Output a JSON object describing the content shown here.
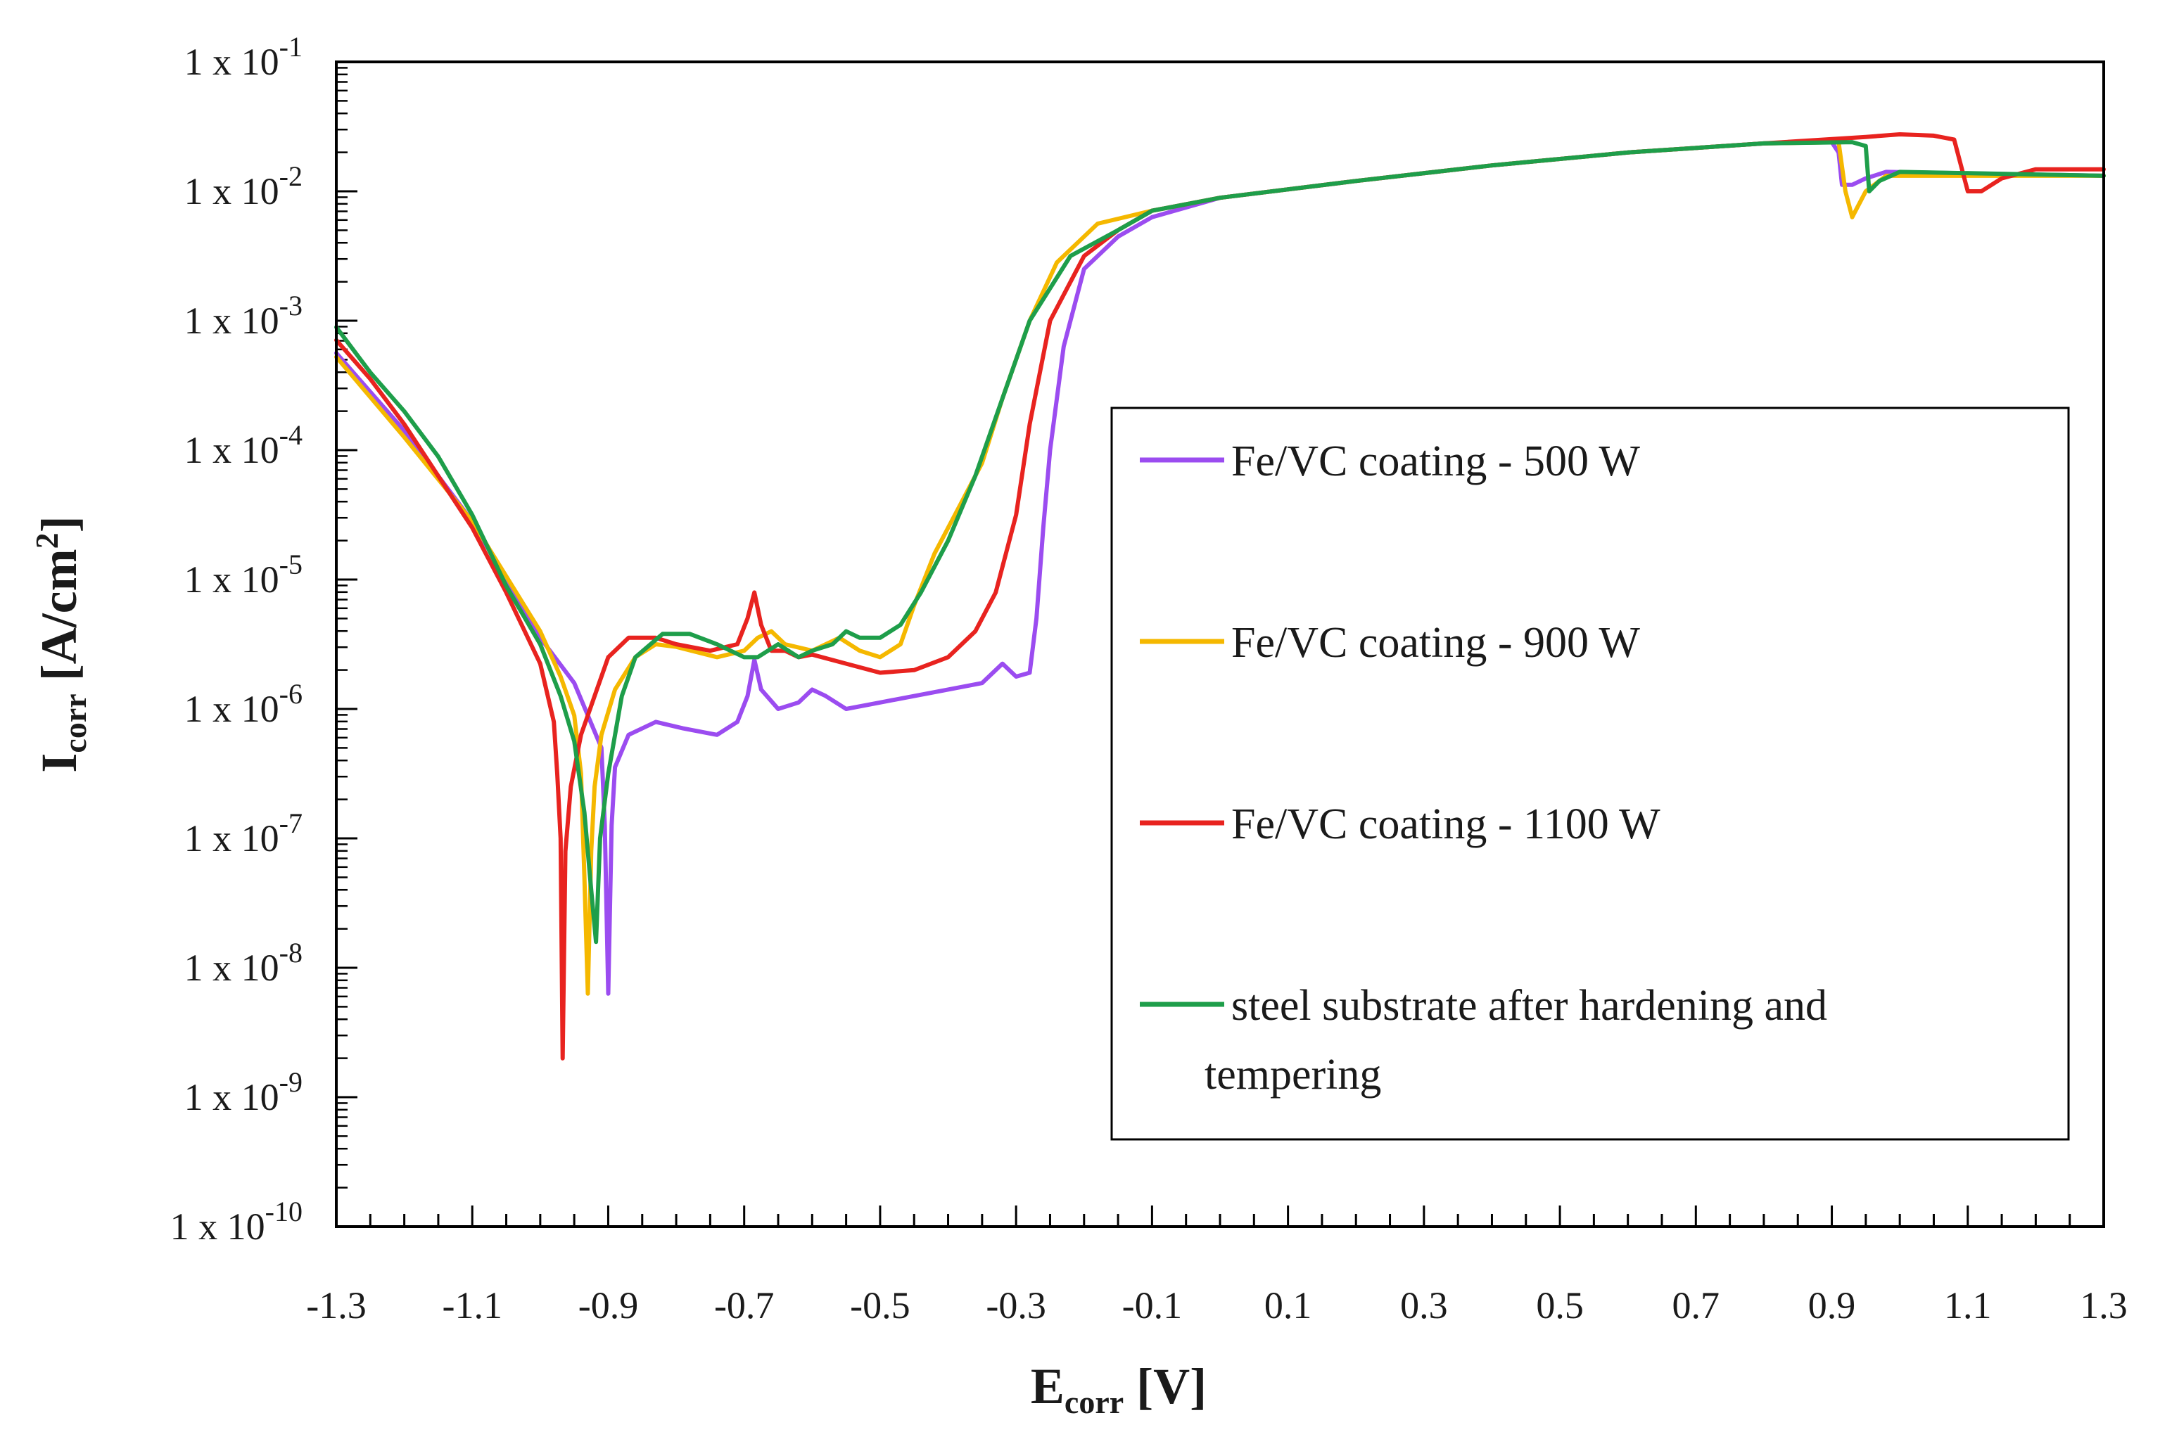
{
  "chart_data": {
    "type": "line",
    "title": "",
    "xlabel": {
      "main": "E",
      "sub": "corr",
      "unit": " [V]"
    },
    "ylabel": {
      "main": "I",
      "sub": "corr",
      "unit": " [A/cm",
      "unit_sup": "2",
      "unit_end": "]"
    },
    "xlim": [
      -1.3,
      1.3
    ],
    "ylim_log10": [
      -10,
      -1
    ],
    "yscale": "log",
    "x_ticks": [
      -1.3,
      -1.1,
      -0.9,
      -0.7,
      -0.5,
      -0.3,
      -0.1,
      0.1,
      0.3,
      0.5,
      0.7,
      0.9,
      1.1,
      1.3
    ],
    "x_tick_labels": [
      "-1.3",
      "-1.1",
      "-0.9",
      "-0.7",
      "-0.5",
      "-0.3",
      "-0.1",
      "0.1",
      "0.3",
      "0.5",
      "0.7",
      "0.9",
      "1.1",
      "1.3"
    ],
    "y_ticks": [
      {
        "base": "1 x 10",
        "exp": "-1"
      },
      {
        "base": "1 x 10",
        "exp": "-2"
      },
      {
        "base": "1 x 10",
        "exp": "-3"
      },
      {
        "base": "1 x 10",
        "exp": "-4"
      },
      {
        "base": "1 x 10",
        "exp": "-5"
      },
      {
        "base": "1 x 10",
        "exp": "-6"
      },
      {
        "base": "1 x 10",
        "exp": "-7"
      },
      {
        "base": "1 x 10",
        "exp": "-8"
      },
      {
        "base": "1 x 10",
        "exp": "-9"
      },
      {
        "base": "1 x 10",
        "exp": "-10"
      }
    ],
    "legend": {
      "position": "right",
      "entries": [
        "Fe/VC coating - 500 W",
        "Fe/VC coating - 900 W",
        "Fe/VC coating - 1100 W",
        "steel substrate after hardening and tempering"
      ],
      "lines": [
        [
          "Fe/VC coating - 500 W"
        ],
        [
          "Fe/VC coating - 900 W"
        ],
        [
          "Fe/VC coating - 1100 W"
        ],
        [
          "steel substrate after hardening and",
          "tempering"
        ]
      ]
    },
    "series": [
      {
        "name": "Fe/VC coating - 500 W",
        "color": "#9B4CF0",
        "points": [
          [
            -1.3,
            -3.25
          ],
          [
            -1.2,
            -3.85
          ],
          [
            -1.1,
            -4.55
          ],
          [
            -1.0,
            -5.45
          ],
          [
            -0.95,
            -5.8
          ],
          [
            -0.93,
            -6.05
          ],
          [
            -0.91,
            -6.3
          ],
          [
            -0.905,
            -6.9
          ],
          [
            -0.9,
            -8.2
          ],
          [
            -0.895,
            -6.9
          ],
          [
            -0.89,
            -6.45
          ],
          [
            -0.87,
            -6.2
          ],
          [
            -0.83,
            -6.1
          ],
          [
            -0.79,
            -6.15
          ],
          [
            -0.74,
            -6.2
          ],
          [
            -0.71,
            -6.1
          ],
          [
            -0.695,
            -5.9
          ],
          [
            -0.685,
            -5.62
          ],
          [
            -0.675,
            -5.85
          ],
          [
            -0.65,
            -6.0
          ],
          [
            -0.62,
            -5.95
          ],
          [
            -0.6,
            -5.85
          ],
          [
            -0.58,
            -5.9
          ],
          [
            -0.55,
            -6.0
          ],
          [
            -0.5,
            -5.95
          ],
          [
            -0.4,
            -5.85
          ],
          [
            -0.35,
            -5.8
          ],
          [
            -0.32,
            -5.65
          ],
          [
            -0.3,
            -5.75
          ],
          [
            -0.28,
            -5.72
          ],
          [
            -0.27,
            -5.3
          ],
          [
            -0.26,
            -4.6
          ],
          [
            -0.25,
            -4.0
          ],
          [
            -0.23,
            -3.2
          ],
          [
            -0.2,
            -2.6
          ],
          [
            -0.15,
            -2.35
          ],
          [
            -0.1,
            -2.2
          ],
          [
            0.0,
            -2.05
          ],
          [
            0.2,
            -1.92
          ],
          [
            0.4,
            -1.8
          ],
          [
            0.6,
            -1.7
          ],
          [
            0.8,
            -1.63
          ],
          [
            0.9,
            -1.62
          ],
          [
            0.91,
            -1.7
          ],
          [
            0.915,
            -1.95
          ],
          [
            0.93,
            -1.95
          ],
          [
            0.95,
            -1.9
          ],
          [
            0.98,
            -1.85
          ],
          [
            1.3,
            -1.88
          ]
        ]
      },
      {
        "name": "Fe/VC coating - 900 W",
        "color": "#F5B800",
        "points": [
          [
            -1.3,
            -3.28
          ],
          [
            -1.2,
            -3.9
          ],
          [
            -1.1,
            -4.55
          ],
          [
            -1.0,
            -5.4
          ],
          [
            -0.97,
            -5.75
          ],
          [
            -0.95,
            -6.05
          ],
          [
            -0.94,
            -6.5
          ],
          [
            -0.935,
            -7.3
          ],
          [
            -0.93,
            -8.2
          ],
          [
            -0.925,
            -7.1
          ],
          [
            -0.92,
            -6.6
          ],
          [
            -0.91,
            -6.2
          ],
          [
            -0.89,
            -5.85
          ],
          [
            -0.86,
            -5.6
          ],
          [
            -0.83,
            -5.5
          ],
          [
            -0.8,
            -5.52
          ],
          [
            -0.74,
            -5.6
          ],
          [
            -0.7,
            -5.55
          ],
          [
            -0.68,
            -5.45
          ],
          [
            -0.66,
            -5.4
          ],
          [
            -0.64,
            -5.5
          ],
          [
            -0.6,
            -5.55
          ],
          [
            -0.56,
            -5.45
          ],
          [
            -0.53,
            -5.55
          ],
          [
            -0.5,
            -5.6
          ],
          [
            -0.47,
            -5.5
          ],
          [
            -0.45,
            -5.2
          ],
          [
            -0.42,
            -4.8
          ],
          [
            -0.38,
            -4.4
          ],
          [
            -0.35,
            -4.1
          ],
          [
            -0.32,
            -3.6
          ],
          [
            -0.28,
            -3.0
          ],
          [
            -0.24,
            -2.55
          ],
          [
            -0.18,
            -2.25
          ],
          [
            -0.1,
            -2.15
          ],
          [
            0.0,
            -2.05
          ],
          [
            0.2,
            -1.92
          ],
          [
            0.4,
            -1.8
          ],
          [
            0.6,
            -1.7
          ],
          [
            0.8,
            -1.63
          ],
          [
            0.91,
            -1.62
          ],
          [
            0.92,
            -2.0
          ],
          [
            0.93,
            -2.2
          ],
          [
            0.95,
            -2.0
          ],
          [
            0.98,
            -1.88
          ],
          [
            1.3,
            -1.88
          ]
        ]
      },
      {
        "name": "Fe/VC coating - 1100 W",
        "color": "#E8231F",
        "points": [
          [
            -1.3,
            -3.15
          ],
          [
            -1.25,
            -3.45
          ],
          [
            -1.2,
            -3.8
          ],
          [
            -1.1,
            -4.6
          ],
          [
            -1.05,
            -5.1
          ],
          [
            -1.0,
            -5.65
          ],
          [
            -0.98,
            -6.1
          ],
          [
            -0.975,
            -6.5
          ],
          [
            -0.97,
            -7.0
          ],
          [
            -0.967,
            -8.7
          ],
          [
            -0.963,
            -7.1
          ],
          [
            -0.955,
            -6.6
          ],
          [
            -0.94,
            -6.2
          ],
          [
            -0.92,
            -5.9
          ],
          [
            -0.9,
            -5.6
          ],
          [
            -0.87,
            -5.45
          ],
          [
            -0.83,
            -5.45
          ],
          [
            -0.8,
            -5.5
          ],
          [
            -0.75,
            -5.55
          ],
          [
            -0.71,
            -5.5
          ],
          [
            -0.695,
            -5.3
          ],
          [
            -0.685,
            -5.1
          ],
          [
            -0.675,
            -5.35
          ],
          [
            -0.66,
            -5.55
          ],
          [
            -0.64,
            -5.55
          ],
          [
            -0.62,
            -5.6
          ],
          [
            -0.6,
            -5.58
          ],
          [
            -0.55,
            -5.65
          ],
          [
            -0.5,
            -5.72
          ],
          [
            -0.45,
            -5.7
          ],
          [
            -0.4,
            -5.6
          ],
          [
            -0.36,
            -5.4
          ],
          [
            -0.33,
            -5.1
          ],
          [
            -0.3,
            -4.5
          ],
          [
            -0.28,
            -3.8
          ],
          [
            -0.25,
            -3.0
          ],
          [
            -0.2,
            -2.5
          ],
          [
            -0.15,
            -2.3
          ],
          [
            -0.1,
            -2.15
          ],
          [
            0.0,
            -2.05
          ],
          [
            0.2,
            -1.92
          ],
          [
            0.4,
            -1.8
          ],
          [
            0.6,
            -1.7
          ],
          [
            0.8,
            -1.63
          ],
          [
            0.95,
            -1.58
          ],
          [
            1.0,
            -1.56
          ],
          [
            1.05,
            -1.57
          ],
          [
            1.08,
            -1.6
          ],
          [
            1.1,
            -2.0
          ],
          [
            1.12,
            -2.0
          ],
          [
            1.15,
            -1.9
          ],
          [
            1.2,
            -1.83
          ],
          [
            1.3,
            -1.83
          ]
        ]
      },
      {
        "name": "steel substrate after hardening and tempering",
        "color": "#1E9E4A",
        "points": [
          [
            -1.3,
            -3.05
          ],
          [
            -1.25,
            -3.4
          ],
          [
            -1.2,
            -3.7
          ],
          [
            -1.15,
            -4.05
          ],
          [
            -1.1,
            -4.5
          ],
          [
            -1.05,
            -5.05
          ],
          [
            -1.0,
            -5.5
          ],
          [
            -0.97,
            -5.9
          ],
          [
            -0.95,
            -6.25
          ],
          [
            -0.935,
            -6.8
          ],
          [
            -0.925,
            -7.4
          ],
          [
            -0.918,
            -7.8
          ],
          [
            -0.912,
            -7.0
          ],
          [
            -0.9,
            -6.5
          ],
          [
            -0.88,
            -5.9
          ],
          [
            -0.86,
            -5.6
          ],
          [
            -0.82,
            -5.42
          ],
          [
            -0.78,
            -5.42
          ],
          [
            -0.74,
            -5.5
          ],
          [
            -0.7,
            -5.6
          ],
          [
            -0.68,
            -5.6
          ],
          [
            -0.65,
            -5.5
          ],
          [
            -0.62,
            -5.6
          ],
          [
            -0.6,
            -5.55
          ],
          [
            -0.57,
            -5.5
          ],
          [
            -0.55,
            -5.4
          ],
          [
            -0.53,
            -5.45
          ],
          [
            -0.5,
            -5.45
          ],
          [
            -0.47,
            -5.35
          ],
          [
            -0.44,
            -5.1
          ],
          [
            -0.4,
            -4.7
          ],
          [
            -0.36,
            -4.2
          ],
          [
            -0.32,
            -3.6
          ],
          [
            -0.28,
            -3.0
          ],
          [
            -0.22,
            -2.5
          ],
          [
            -0.15,
            -2.3
          ],
          [
            -0.1,
            -2.15
          ],
          [
            0.0,
            -2.05
          ],
          [
            0.2,
            -1.92
          ],
          [
            0.4,
            -1.8
          ],
          [
            0.6,
            -1.7
          ],
          [
            0.8,
            -1.63
          ],
          [
            0.93,
            -1.62
          ],
          [
            0.95,
            -1.65
          ],
          [
            0.955,
            -2.0
          ],
          [
            0.97,
            -1.92
          ],
          [
            1.0,
            -1.85
          ],
          [
            1.3,
            -1.88
          ]
        ]
      }
    ]
  }
}
